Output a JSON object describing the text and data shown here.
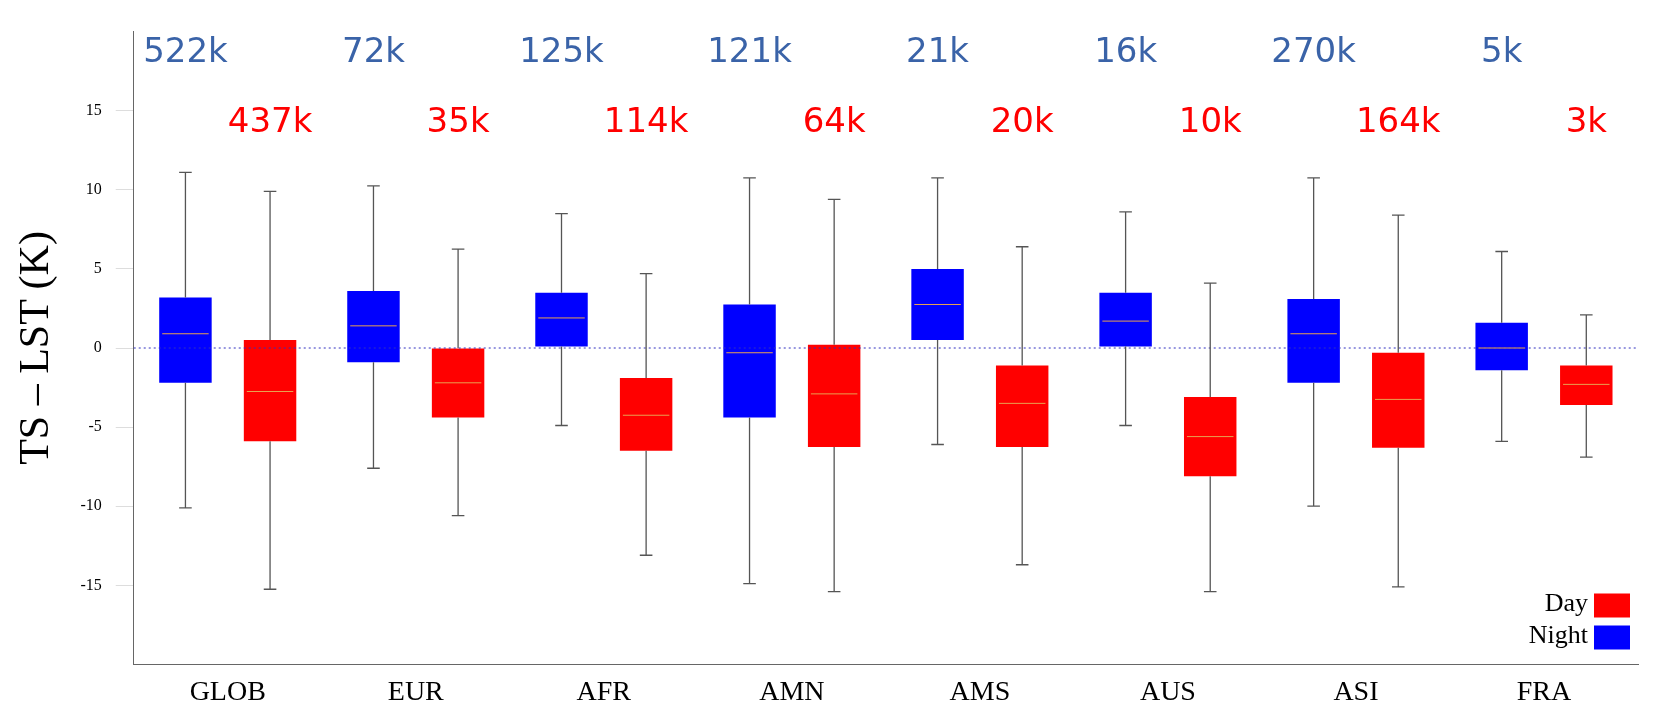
{
  "chart_data": {
    "type": "box",
    "ylabel": "TS – LST (K)",
    "categories": [
      "GLOB",
      "EUR",
      "AFR",
      "AMN",
      "AMS",
      "AUS",
      "ASI",
      "FRA"
    ],
    "ylim": [
      -20,
      20
    ],
    "yticks": [
      -15,
      -10,
      -5,
      0,
      5,
      10,
      15
    ],
    "grid": false,
    "legend": "bottom right",
    "ref_lines": [
      {
        "axis": "y",
        "value": 0,
        "color": "#3030c0",
        "line_style": "dotted"
      }
    ],
    "annotations": [
      "522k",
      "72k",
      "125k",
      "121k",
      "21k",
      "16k",
      "270k",
      "5k",
      "437k",
      "35k",
      "114k",
      "64k",
      "20k",
      "10k",
      "164k",
      "3k"
    ],
    "series": [
      {
        "name": "Night",
        "color": "#0000ff",
        "boxes": [
          {
            "low": -10.1,
            "q1": -2.2,
            "median": 0.9,
            "q3": 3.2,
            "high": 11.1
          },
          {
            "low": -7.6,
            "q1": -0.9,
            "median": 1.4,
            "q3": 3.6,
            "high": 10.25
          },
          {
            "low": -4.9,
            "q1": 0.1,
            "median": 1.9,
            "q3": 3.5,
            "high": 8.5
          },
          {
            "low": -14.9,
            "q1": -4.4,
            "median": -0.3,
            "q3": 2.75,
            "high": 10.75
          },
          {
            "low": -6.1,
            "q1": 0.5,
            "median": 2.75,
            "q3": 5.0,
            "high": 10.75
          },
          {
            "low": -4.9,
            "q1": 0.1,
            "median": 1.7,
            "q3": 3.5,
            "high": 8.6
          },
          {
            "low": -10,
            "q1": -2.2,
            "median": 0.9,
            "q3": 3.1,
            "high": 10.75
          },
          {
            "low": -5.9,
            "q1": -1.4,
            "median": 0,
            "q3": 1.6,
            "high": 6.1
          }
        ]
      },
      {
        "name": "Day",
        "color": "#ff0000",
        "boxes": [
          {
            "low": -15.25,
            "q1": -5.9,
            "median": -2.75,
            "q3": 0.5,
            "high": 9.9
          },
          {
            "low": -10.6,
            "q1": -4.4,
            "median": -2.2,
            "q3": 0,
            "high": 6.25
          },
          {
            "low": -13.1,
            "q1": -6.5,
            "median": -4.25,
            "q3": -1.9,
            "high": 4.7
          },
          {
            "low": -15.4,
            "q1": -6.25,
            "median": -2.9,
            "q3": 0.2,
            "high": 9.4
          },
          {
            "low": -13.7,
            "q1": -6.25,
            "median": -3.5,
            "q3": -1.1,
            "high": 6.4
          },
          {
            "low": -15.4,
            "q1": -8.1,
            "median": -5.6,
            "q3": -3.1,
            "high": 4.1
          },
          {
            "low": -15.1,
            "q1": -6.3,
            "median": -3.25,
            "q3": -0.3,
            "high": 8.4
          },
          {
            "low": -6.9,
            "q1": -3.6,
            "median": -2.3,
            "q3": -1.1,
            "high": 2.1
          }
        ]
      }
    ]
  }
}
